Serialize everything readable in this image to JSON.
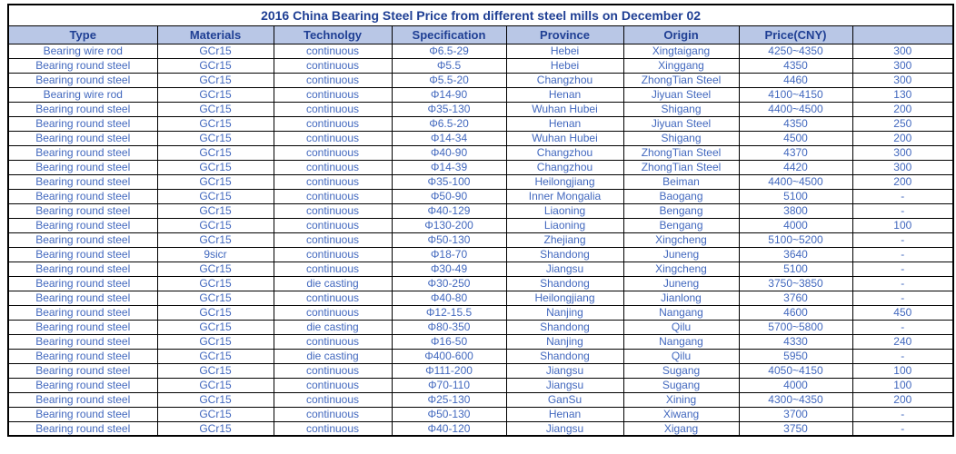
{
  "table": {
    "title": "2016 China Bearing Steel Price from different steel mills on December 02",
    "columns": [
      "Type",
      "Materials",
      "Technolgy",
      "Specification",
      "Province",
      "Origin",
      "Price(CNY)",
      ""
    ],
    "rows": [
      [
        "Bearing wire rod",
        "GCr15",
        "continuous",
        "Φ6.5-29",
        "Hebei",
        "Xingtaigang",
        "4250~4350",
        "300"
      ],
      [
        "Bearing round steel",
        "GCr15",
        "continuous",
        "Φ5.5",
        "Hebei",
        "Xinggang",
        "4350",
        "300"
      ],
      [
        "Bearing round steel",
        "GCr15",
        "continuous",
        "Φ5.5-20",
        "Changzhou",
        "ZhongTian Steel",
        "4460",
        "300"
      ],
      [
        "Bearing wire rod",
        "GCr15",
        "continuous",
        "Φ14-90",
        "Henan",
        "Jiyuan Steel",
        "4100~4150",
        "130"
      ],
      [
        "Bearing round steel",
        "GCr15",
        "continuous",
        "Φ35-130",
        "Wuhan Hubei",
        "Shigang",
        "4400~4500",
        "200"
      ],
      [
        "Bearing round steel",
        "GCr15",
        "continuous",
        "Φ6.5-20",
        "Henan",
        "Jiyuan Steel",
        "4350",
        "250"
      ],
      [
        "Bearing round steel",
        "GCr15",
        "continuous",
        "Φ14-34",
        "Wuhan Hubei",
        "Shigang",
        "4500",
        "200"
      ],
      [
        "Bearing round steel",
        "GCr15",
        "continuous",
        "Φ40-90",
        "Changzhou",
        "ZhongTian Steel",
        "4370",
        "300"
      ],
      [
        "Bearing round steel",
        "GCr15",
        "continuous",
        "Φ14-39",
        "Changzhou",
        "ZhongTian Steel",
        "4420",
        "300"
      ],
      [
        "Bearing round steel",
        "GCr15",
        "continuous",
        "Φ35-100",
        "Heilongjiang",
        "Beiman",
        "4400~4500",
        "200"
      ],
      [
        "Bearing round steel",
        "GCr15",
        "continuous",
        "Φ50-90",
        "Inner Mongalia",
        "Baogang",
        "5100",
        "-"
      ],
      [
        "Bearing round steel",
        "GCr15",
        "continuous",
        "Φ40-129",
        "Liaoning",
        "Bengang",
        "3800",
        "-"
      ],
      [
        "Bearing round steel",
        "GCr15",
        "continuous",
        "Φ130-200",
        "Liaoning",
        "Bengang",
        "4000",
        "100"
      ],
      [
        "Bearing round steel",
        "GCr15",
        "continuous",
        "Φ50-130",
        "Zhejiang",
        "Xingcheng",
        "5100~5200",
        "-"
      ],
      [
        "Bearing round steel",
        "9sicr",
        "continuous",
        "Φ18-70",
        "Shandong",
        "Juneng",
        "3640",
        "-"
      ],
      [
        "Bearing round steel",
        "GCr15",
        "continuous",
        "Φ30-49",
        "Jiangsu",
        "Xingcheng",
        "5100",
        "-"
      ],
      [
        "Bearing round steel",
        "GCr15",
        "die casting",
        "Φ30-250",
        "Shandong",
        "Juneng",
        "3750~3850",
        "-"
      ],
      [
        "Bearing round steel",
        "GCr15",
        "continuous",
        "Φ40-80",
        "Heilongjiang",
        "Jianlong",
        "3760",
        "-"
      ],
      [
        "Bearing round steel",
        "GCr15",
        "continuous",
        "Φ12-15.5",
        "Nanjing",
        "Nangang",
        "4600",
        "450"
      ],
      [
        "Bearing round steel",
        "GCr15",
        "die casting",
        "Φ80-350",
        "Shandong",
        "Qilu",
        "5700~5800",
        "-"
      ],
      [
        "Bearing round steel",
        "GCr15",
        "continuous",
        "Φ16-50",
        "Nanjing",
        "Nangang",
        "4330",
        "240"
      ],
      [
        "Bearing round steel",
        "GCr15",
        "die casting",
        "Φ400-600",
        "Shandong",
        "Qilu",
        "5950",
        "-"
      ],
      [
        "Bearing round steel",
        "GCr15",
        "continuous",
        "Φ111-200",
        "Jiangsu",
        "Sugang",
        "4050~4150",
        "100"
      ],
      [
        "Bearing round steel",
        "GCr15",
        "continuous",
        "Φ70-110",
        "Jiangsu",
        "Sugang",
        "4000",
        "100"
      ],
      [
        "Bearing round steel",
        "GCr15",
        "continuous",
        "Φ25-130",
        "GanSu",
        "Xining",
        "4300~4350",
        "200"
      ],
      [
        "Bearing round steel",
        "GCr15",
        "continuous",
        "Φ50-130",
        "Henan",
        "Xiwang",
        "3700",
        "-"
      ],
      [
        "Bearing round steel",
        "GCr15",
        "continuous",
        "Φ40-120",
        "Jiangsu",
        "Xigang",
        "3750",
        "-"
      ]
    ],
    "colors": {
      "title_text": "#1f3f94",
      "header_bg": "#b9c7e6",
      "header_text": "#1f3f94",
      "body_text": "#4268be",
      "grid": "#000000"
    }
  }
}
